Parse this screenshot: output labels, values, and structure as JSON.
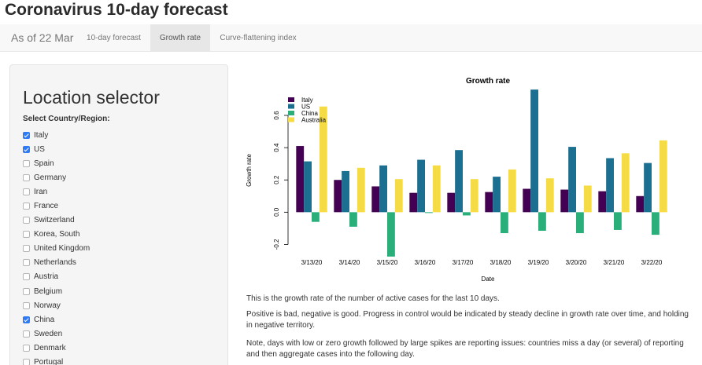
{
  "app": {
    "title": "Coronavirus 10-day forecast"
  },
  "navbar": {
    "brand": "As of 22 Mar",
    "tabs": [
      {
        "label": "10-day forecast",
        "active": false
      },
      {
        "label": "Growth rate",
        "active": true
      },
      {
        "label": "Curve-flattening index",
        "active": false
      }
    ]
  },
  "sidebar": {
    "title": "Location selector",
    "select_label": "Select Country/Region:",
    "countries": [
      {
        "name": "Italy",
        "checked": true
      },
      {
        "name": "US",
        "checked": true
      },
      {
        "name": "Spain",
        "checked": false
      },
      {
        "name": "Germany",
        "checked": false
      },
      {
        "name": "Iran",
        "checked": false
      },
      {
        "name": "France",
        "checked": false
      },
      {
        "name": "Switzerland",
        "checked": false
      },
      {
        "name": "Korea, South",
        "checked": false
      },
      {
        "name": "United Kingdom",
        "checked": false
      },
      {
        "name": "Netherlands",
        "checked": false
      },
      {
        "name": "Austria",
        "checked": false
      },
      {
        "name": "Belgium",
        "checked": false
      },
      {
        "name": "Norway",
        "checked": false
      },
      {
        "name": "China",
        "checked": true
      },
      {
        "name": "Sweden",
        "checked": false
      },
      {
        "name": "Denmark",
        "checked": false
      },
      {
        "name": "Portugal",
        "checked": false
      }
    ]
  },
  "chart_data": {
    "type": "bar",
    "title": "Growth rate",
    "xlabel": "Date",
    "ylabel": "Growth rate",
    "categories": [
      "3/13/20",
      "3/14/20",
      "3/15/20",
      "3/16/20",
      "3/17/20",
      "3/18/20",
      "3/19/20",
      "3/20/20",
      "3/21/20",
      "3/22/20"
    ],
    "yticks": [
      -0.2,
      0.0,
      0.2,
      0.4,
      0.6
    ],
    "ytick_labels": [
      "-0.2",
      "0.0",
      "0.2",
      "0.4",
      "0.6"
    ],
    "ylim": [
      -0.3,
      0.78
    ],
    "legend_position": "top-left",
    "series": [
      {
        "name": "Italy",
        "color": "#440154",
        "values": [
          0.41,
          0.2,
          0.16,
          0.12,
          0.12,
          0.125,
          0.145,
          0.14,
          0.13,
          0.1
        ]
      },
      {
        "name": "US",
        "color": "#1b6f91",
        "values": [
          0.315,
          0.255,
          0.29,
          0.325,
          0.385,
          0.22,
          0.76,
          0.405,
          0.335,
          0.305
        ]
      },
      {
        "name": "China",
        "color": "#2aaf7b",
        "values": [
          -0.06,
          -0.09,
          -0.275,
          -0.005,
          -0.02,
          -0.13,
          -0.115,
          -0.13,
          -0.11,
          -0.14
        ]
      },
      {
        "name": "Australia",
        "color": "#f5dc45",
        "values": [
          0.655,
          0.275,
          0.205,
          0.29,
          0.205,
          0.265,
          0.21,
          0.165,
          0.365,
          0.445
        ]
      }
    ]
  },
  "description": {
    "p1": "This is the growth rate of the number of active cases for the last 10 days.",
    "p2": "Positive is bad, negative is good. Progress in control would be indicated by steady decline in growth rate over time, and holding in negative territory.",
    "p3": "Note, days with low or zero growth followed by large spikes are reporting issues: countries miss a day (or several) of reporting and then aggregate cases into the following day."
  }
}
